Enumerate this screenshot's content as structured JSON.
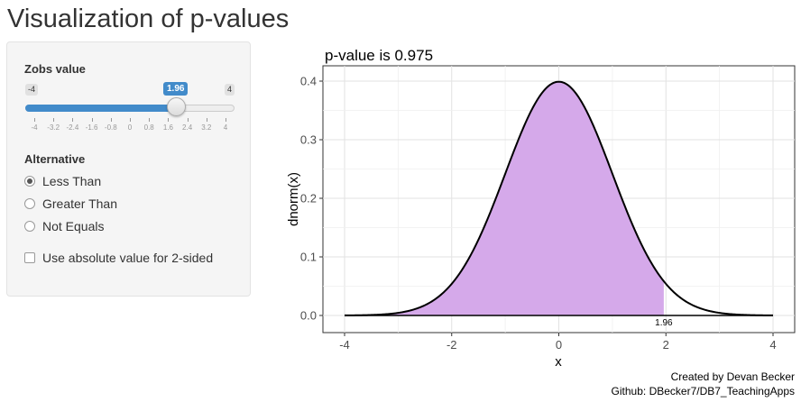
{
  "app": {
    "title": "Visualization of p-values"
  },
  "sidebar": {
    "slider": {
      "label": "Zobs value",
      "min_label": "-4",
      "max_label": "4",
      "value_label": "1.96",
      "value": 1.96,
      "min": -4,
      "max": 4,
      "ticks": [
        "-4",
        "-3.2",
        "-2.4",
        "-1.6",
        "-0.8",
        "0",
        "0.8",
        "1.6",
        "2.4",
        "3.2",
        "4"
      ]
    },
    "alternative": {
      "label": "Alternative",
      "options": [
        "Less Than",
        "Greater Than",
        "Not Equals"
      ],
      "selected": "Less Than"
    },
    "checkbox": {
      "label": "Use absolute value for 2-sided",
      "checked": false
    }
  },
  "plot": {
    "title": "p-value is 0.975",
    "annotation": "1.96"
  },
  "chart_data": {
    "type": "area",
    "title": "p-value is 0.975",
    "xlabel": "x",
    "ylabel": "dnorm(x)",
    "xlim": [
      -4,
      4
    ],
    "ylim": [
      0,
      0.4
    ],
    "x_ticks": [
      "-4",
      "-2",
      "0",
      "2",
      "4"
    ],
    "y_ticks": [
      "0.0",
      "0.1",
      "0.2",
      "0.3",
      "0.4"
    ],
    "curve": "dnorm(x)",
    "shaded_region": {
      "from": -4,
      "to": 1.96
    },
    "shade_color": "#d5a9ea",
    "line_color": "#000000",
    "grid": true
  },
  "footer": {
    "line1": "Created by Devan Becker",
    "line2": "Github: DBecker7/DB7_TeachingApps"
  }
}
